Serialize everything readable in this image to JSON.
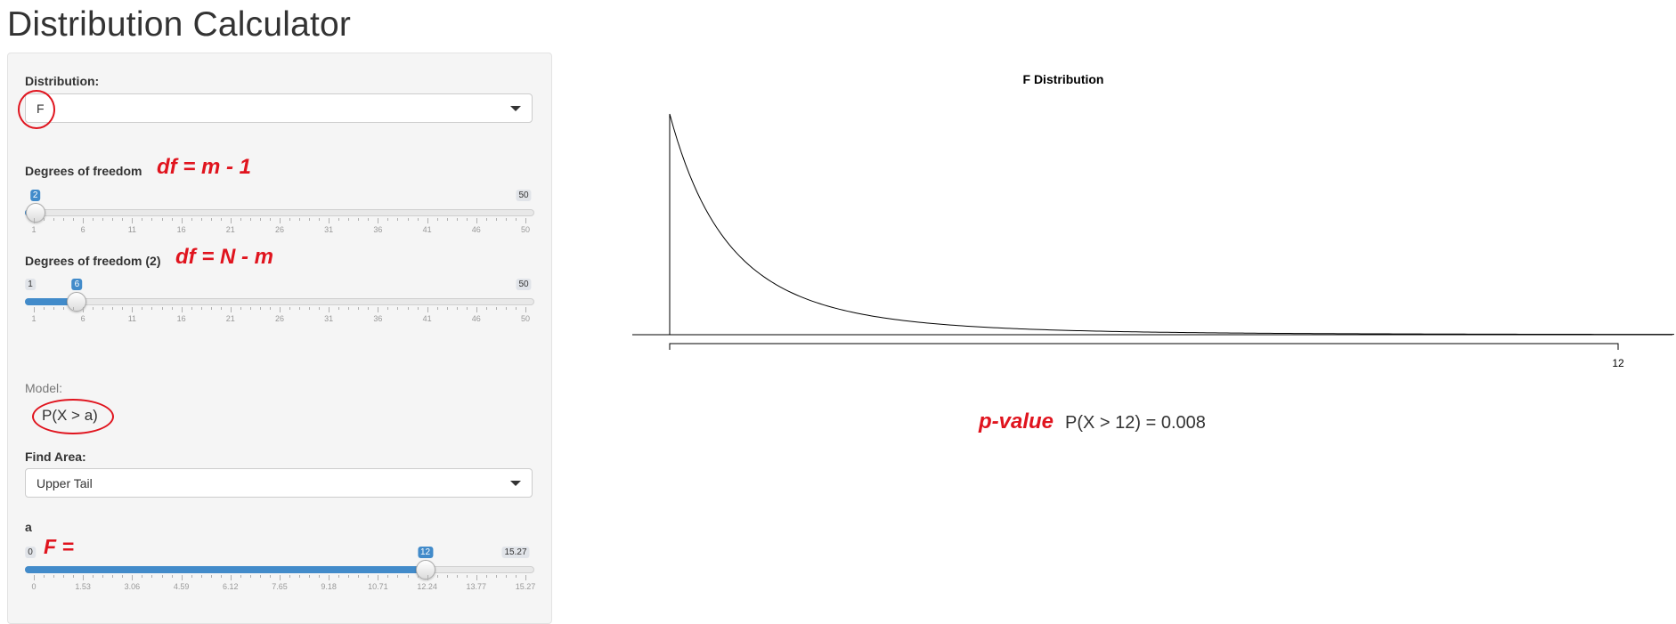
{
  "app": {
    "title": "Distribution Calculator"
  },
  "distribution": {
    "label": "Distribution:",
    "selected": "F"
  },
  "df1": {
    "label": "Degrees of freedom",
    "annotation": "df  = m - 1",
    "min": 1,
    "max": 50,
    "value": 2,
    "min_label": "",
    "max_label": "50",
    "value_label": "2",
    "grid_labels": [
      "1",
      "6",
      "11",
      "16",
      "21",
      "26",
      "31",
      "36",
      "41",
      "46",
      "50"
    ]
  },
  "df2": {
    "label": "Degrees of freedom (2)",
    "annotation": "df = N - m",
    "min": 1,
    "max": 50,
    "value": 6,
    "min_label": "1",
    "max_label": "50",
    "value_label": "6",
    "grid_labels": [
      "1",
      "6",
      "11",
      "16",
      "21",
      "26",
      "31",
      "36",
      "41",
      "46",
      "50"
    ]
  },
  "model": {
    "label": "Model:",
    "value": "P(X > a)"
  },
  "find_area": {
    "label": "Find Area:",
    "selected": "Upper Tail"
  },
  "a_slider": {
    "label": "a",
    "annotation": "F =",
    "min": 0,
    "max": 15.27,
    "value": 12,
    "min_label": "0",
    "max_label": "15.27",
    "value_label": "12",
    "grid_labels": [
      "0",
      "1.53",
      "3.06",
      "4.59",
      "6.12",
      "7.65",
      "9.18",
      "10.71",
      "12.24",
      "13.77",
      "15.27"
    ]
  },
  "result": {
    "annotation": "p-value",
    "text": "P(X > 12) = 0.008"
  },
  "chart_data": {
    "type": "line",
    "title": "F Distribution",
    "df1": 2,
    "df2": 6,
    "x_tick_labels": [
      "12"
    ],
    "series": [
      {
        "x": [
          0,
          0.5,
          1,
          1.5,
          2,
          2.5,
          3,
          4,
          5,
          6,
          7,
          8,
          9,
          10,
          11,
          12,
          12.5
        ],
        "y": [
          1.0,
          0.63,
          0.42,
          0.29,
          0.21,
          0.155,
          0.117,
          0.07,
          0.044,
          0.03,
          0.021,
          0.015,
          0.011,
          0.0084,
          0.0065,
          0.0051,
          0.0045
        ]
      }
    ],
    "shaded_region": "upper tail beyond 12",
    "colors": {
      "curve": "#000000"
    }
  }
}
